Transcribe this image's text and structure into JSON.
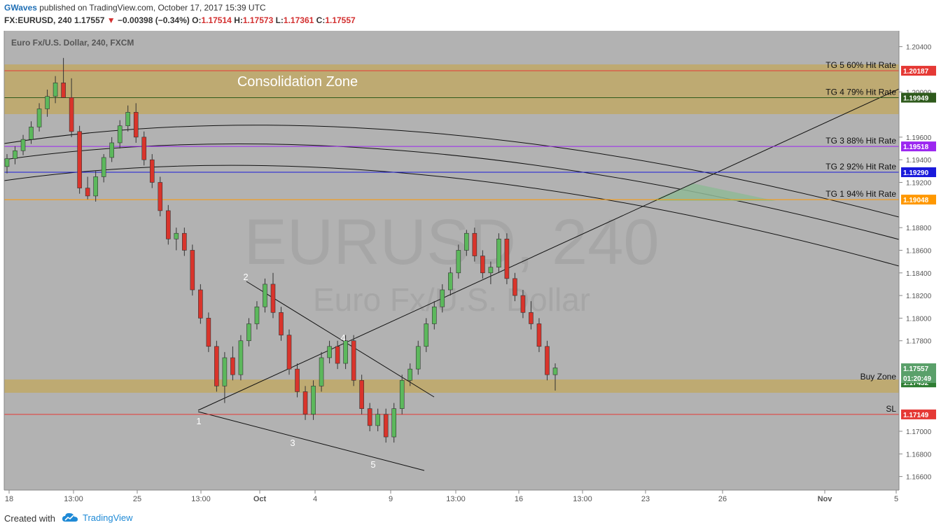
{
  "header": {
    "author": "GWaves",
    "published": " published on TradingView.com, October 17, 2017 15:39 UTC",
    "symbol": "FX:EURUSD, 240",
    "last": "1.17557",
    "change": "−0.00398 (−0.34%)",
    "o_label": "O:",
    "o_value": "1.17514",
    "h_label": "H:",
    "h_value": "1.17573",
    "l_label": "L:",
    "l_value": "1.17361",
    "c_label": "C:",
    "c_value": "1.17557"
  },
  "footer": {
    "created_with": "Created with",
    "brand": "TradingView"
  },
  "chart_data": {
    "type": "candlestick",
    "title": "Euro Fx/U.S. Dollar, 240, FXCM",
    "watermark_symbol": "EURUSD, 240",
    "watermark_name": "Euro Fx/U.S. Dollar",
    "y_axis": {
      "range": [
        1.1648,
        1.2054
      ],
      "ticks": [
        "1.20400",
        "1.20000",
        "1.19600",
        "1.19400",
        "1.19200",
        "1.18800",
        "1.18600",
        "1.18400",
        "1.18200",
        "1.18000",
        "1.17800",
        "1.17000",
        "1.16800",
        "1.16600"
      ]
    },
    "x_axis": {
      "ticks": [
        "18",
        "13:00",
        "25",
        "13:00",
        "Oct",
        "4",
        "9",
        "13:00",
        "16",
        "13:00",
        "23",
        "26",
        "Nov",
        "5"
      ]
    },
    "annotations": {
      "zone_label": "Consolidation Zone",
      "wave_labels": [
        "1",
        "2",
        "3",
        "4",
        "5"
      ]
    },
    "levels": [
      {
        "label": "TG 5 60% Hit Rate",
        "price": "1.20187",
        "color": "#e53935"
      },
      {
        "label": "TG 4 79% Hit Rate",
        "price": "1.19949",
        "color": "#2e5a1c"
      },
      {
        "label": "TG 3 88% Hit Rate",
        "price": "1.19518",
        "color": "#9c27f0"
      },
      {
        "label": "TG 2 92% Hit Rate",
        "price": "1.19290",
        "color": "#1a1adb"
      },
      {
        "label": "TG 1 94% Hit Rate",
        "price": "1.19048",
        "color": "#ff9800"
      },
      {
        "label": "Buy Zone",
        "price": "1.17432",
        "color": "#2e7d32"
      },
      {
        "label": "SL",
        "price": "1.17149",
        "color": "#e53935"
      }
    ],
    "current_price": {
      "value": "1.17557",
      "countdown": "01:20:49",
      "color": "#5aa06a"
    },
    "colors": {
      "up": "#5cb85c",
      "down": "#d9342b",
      "zone": "#bfa86a",
      "background": "#b2b2b2"
    },
    "candles_ohlc": [
      [
        1.1934,
        1.1945,
        1.1928,
        1.1941
      ],
      [
        1.1941,
        1.1952,
        1.1936,
        1.1948
      ],
      [
        1.1948,
        1.1962,
        1.1944,
        1.1958
      ],
      [
        1.1958,
        1.1974,
        1.1954,
        1.1969
      ],
      [
        1.1969,
        1.199,
        1.1965,
        1.1985
      ],
      [
        1.1985,
        1.2002,
        1.1978,
        1.1996
      ],
      [
        1.1996,
        1.2014,
        1.199,
        1.2008
      ],
      [
        1.2008,
        1.203,
        1.1995,
        1.1995
      ],
      [
        1.1995,
        1.2012,
        1.196,
        1.1965
      ],
      [
        1.1965,
        1.197,
        1.191,
        1.1915
      ],
      [
        1.1915,
        1.1925,
        1.1905,
        1.1908
      ],
      [
        1.1908,
        1.193,
        1.1903,
        1.1925
      ],
      [
        1.1925,
        1.1945,
        1.192,
        1.1942
      ],
      [
        1.1942,
        1.196,
        1.1938,
        1.1955
      ],
      [
        1.1955,
        1.1975,
        1.195,
        1.197
      ],
      [
        1.197,
        1.1988,
        1.1965,
        1.1982
      ],
      [
        1.1982,
        1.199,
        1.1955,
        1.196
      ],
      [
        1.196,
        1.1965,
        1.1935,
        1.194
      ],
      [
        1.194,
        1.1945,
        1.1915,
        1.192
      ],
      [
        1.192,
        1.1925,
        1.189,
        1.1895
      ],
      [
        1.1895,
        1.19,
        1.1865,
        1.187
      ],
      [
        1.187,
        1.188,
        1.186,
        1.1875
      ],
      [
        1.1875,
        1.188,
        1.1855,
        1.186
      ],
      [
        1.186,
        1.1865,
        1.182,
        1.1825
      ],
      [
        1.1825,
        1.183,
        1.1795,
        1.18
      ],
      [
        1.18,
        1.1805,
        1.177,
        1.1775
      ],
      [
        1.1775,
        1.178,
        1.1735,
        1.174
      ],
      [
        1.174,
        1.177,
        1.1725,
        1.1765
      ],
      [
        1.1765,
        1.1775,
        1.1745,
        1.175
      ],
      [
        1.175,
        1.1785,
        1.1745,
        1.178
      ],
      [
        1.178,
        1.18,
        1.1775,
        1.1795
      ],
      [
        1.1795,
        1.1815,
        1.179,
        1.181
      ],
      [
        1.181,
        1.1835,
        1.1805,
        1.183
      ],
      [
        1.183,
        1.184,
        1.18,
        1.1805
      ],
      [
        1.1805,
        1.181,
        1.178,
        1.1785
      ],
      [
        1.1785,
        1.179,
        1.175,
        1.1755
      ],
      [
        1.1755,
        1.176,
        1.173,
        1.1735
      ],
      [
        1.1735,
        1.174,
        1.171,
        1.1715
      ],
      [
        1.1715,
        1.1745,
        1.171,
        1.174
      ],
      [
        1.174,
        1.177,
        1.1735,
        1.1765
      ],
      [
        1.1765,
        1.178,
        1.176,
        1.1775
      ],
      [
        1.1775,
        1.178,
        1.1755,
        1.176
      ],
      [
        1.176,
        1.1785,
        1.1755,
        1.178
      ],
      [
        1.178,
        1.1785,
        1.174,
        1.1745
      ],
      [
        1.1745,
        1.175,
        1.1715,
        1.172
      ],
      [
        1.172,
        1.1725,
        1.17,
        1.1705
      ],
      [
        1.1705,
        1.172,
        1.17,
        1.1715
      ],
      [
        1.1715,
        1.172,
        1.169,
        1.1695
      ],
      [
        1.1695,
        1.1725,
        1.169,
        1.172
      ],
      [
        1.172,
        1.175,
        1.1715,
        1.1745
      ],
      [
        1.1745,
        1.176,
        1.174,
        1.1755
      ],
      [
        1.1755,
        1.178,
        1.175,
        1.1775
      ],
      [
        1.1775,
        1.18,
        1.177,
        1.1795
      ],
      [
        1.1795,
        1.1815,
        1.179,
        1.181
      ],
      [
        1.181,
        1.183,
        1.1805,
        1.1825
      ],
      [
        1.1825,
        1.1845,
        1.182,
        1.184
      ],
      [
        1.184,
        1.1865,
        1.1835,
        1.186
      ],
      [
        1.186,
        1.1878,
        1.1855,
        1.1875
      ],
      [
        1.1875,
        1.188,
        1.185,
        1.1855
      ],
      [
        1.1855,
        1.186,
        1.1835,
        1.184
      ],
      [
        1.184,
        1.185,
        1.183,
        1.1845
      ],
      [
        1.1845,
        1.1875,
        1.184,
        1.187
      ],
      [
        1.187,
        1.1875,
        1.183,
        1.1835
      ],
      [
        1.1835,
        1.184,
        1.1815,
        1.182
      ],
      [
        1.182,
        1.1825,
        1.18,
        1.1805
      ],
      [
        1.1805,
        1.1815,
        1.179,
        1.1795
      ],
      [
        1.1795,
        1.18,
        1.177,
        1.1775
      ],
      [
        1.1775,
        1.178,
        1.1745,
        1.175
      ],
      [
        1.175,
        1.176,
        1.1736,
        1.1756
      ]
    ]
  }
}
